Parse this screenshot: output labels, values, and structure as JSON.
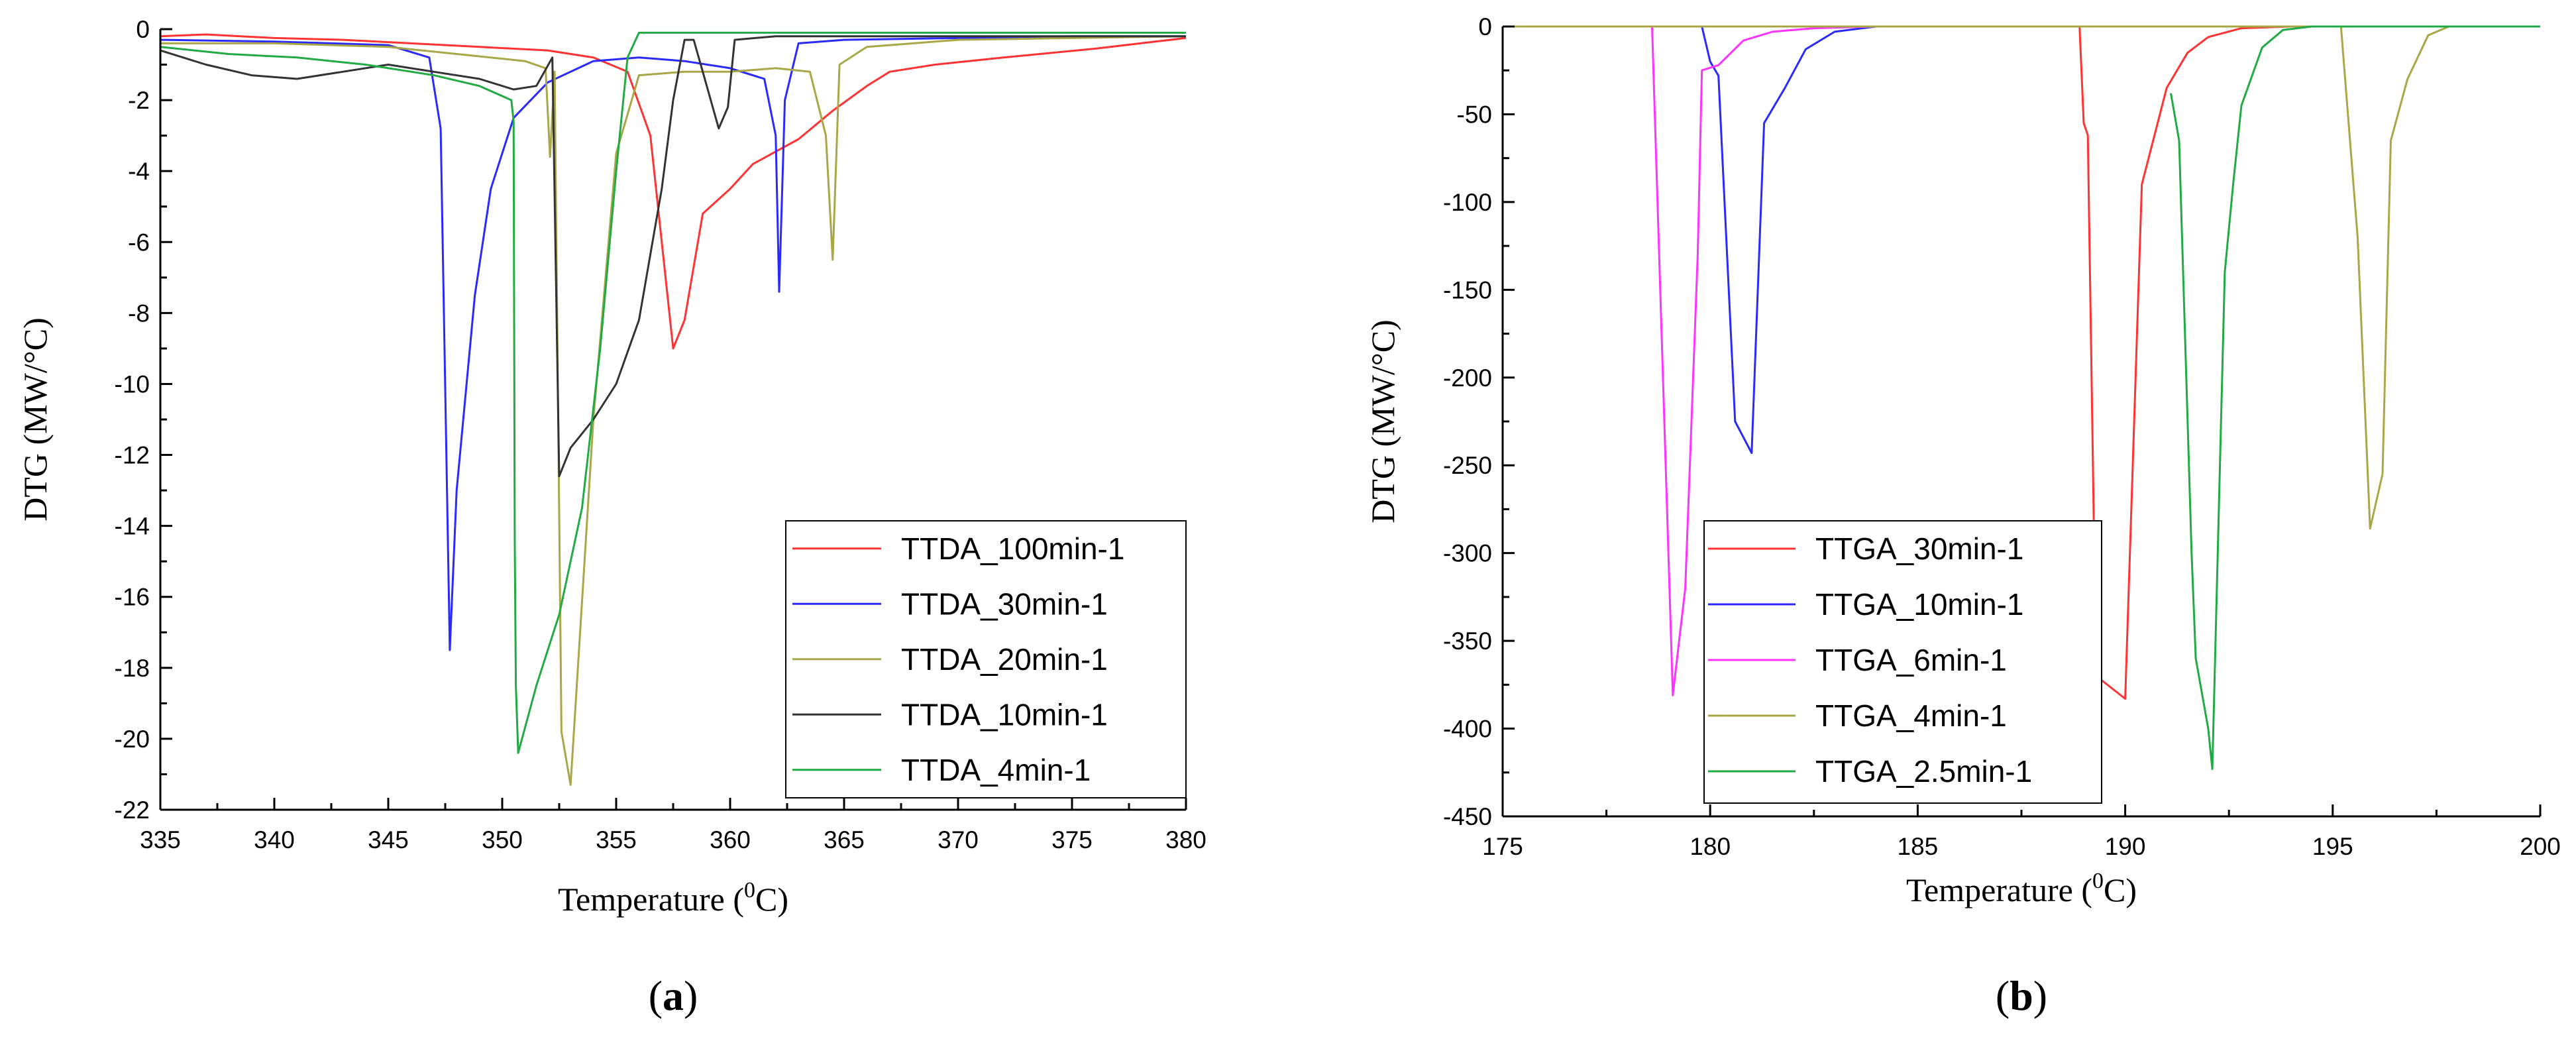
{
  "chart_data": [
    {
      "type": "line",
      "panel_label": "a",
      "title": "",
      "xlabel": "Temperature",
      "xlabel_sup": "0",
      "xlabel_unit": "C",
      "ylabel": "DTG (MW/°C)",
      "xlim": [
        335,
        380
      ],
      "ylim": [
        -22,
        0
      ],
      "xticks": [
        335,
        340,
        345,
        350,
        355,
        360,
        365,
        370,
        375,
        380
      ],
      "yticks": [
        0,
        -2,
        -4,
        -6,
        -8,
        -10,
        -12,
        -14,
        -16,
        -18,
        -20,
        -22
      ],
      "legend_position": "bottom-right",
      "series": [
        {
          "name": "TTDA_100min-1",
          "color": "#ff3333",
          "points": [
            [
              335,
              -0.2
            ],
            [
              337,
              -0.15
            ],
            [
              340,
              -0.25
            ],
            [
              343,
              -0.3
            ],
            [
              346,
              -0.4
            ],
            [
              349,
              -0.5
            ],
            [
              352,
              -0.6
            ],
            [
              354,
              -0.8
            ],
            [
              355.5,
              -1.2
            ],
            [
              356.5,
              -3
            ],
            [
              357.5,
              -9.0
            ],
            [
              358,
              -8.2
            ],
            [
              358.8,
              -5.2
            ],
            [
              360,
              -4.5
            ],
            [
              361,
              -3.8
            ],
            [
              363,
              -3.1
            ],
            [
              364.5,
              -2.3
            ],
            [
              366,
              -1.6
            ],
            [
              367,
              -1.2
            ],
            [
              369,
              -1.0
            ],
            [
              372,
              -0.8
            ],
            [
              376,
              -0.55
            ],
            [
              378,
              -0.4
            ],
            [
              380,
              -0.25
            ]
          ]
        },
        {
          "name": "TTDA_30min-1",
          "color": "#2a2aff",
          "points": [
            [
              335,
              -0.3
            ],
            [
              340,
              -0.35
            ],
            [
              345,
              -0.45
            ],
            [
              346.8,
              -0.8
            ],
            [
              347.3,
              -2.8
            ],
            [
              347.7,
              -17.5
            ],
            [
              348,
              -13
            ],
            [
              348.8,
              -7.5
            ],
            [
              349.5,
              -4.5
            ],
            [
              350.5,
              -2.5
            ],
            [
              352,
              -1.5
            ],
            [
              354,
              -0.9
            ],
            [
              356,
              -0.8
            ],
            [
              358,
              -0.9
            ],
            [
              360,
              -1.1
            ],
            [
              361.5,
              -1.4
            ],
            [
              362,
              -3
            ],
            [
              362.15,
              -7.4
            ],
            [
              362.4,
              -2
            ],
            [
              363,
              -0.4
            ],
            [
              365,
              -0.3
            ],
            [
              370,
              -0.25
            ],
            [
              375,
              -0.2
            ],
            [
              380,
              -0.2
            ]
          ]
        },
        {
          "name": "TTDA_20min-1",
          "color": "#a8a848",
          "points": [
            [
              335,
              -0.4
            ],
            [
              340,
              -0.4
            ],
            [
              345,
              -0.5
            ],
            [
              348,
              -0.7
            ],
            [
              351,
              -0.9
            ],
            [
              351.9,
              -1.1
            ],
            [
              352.1,
              -3.6
            ],
            [
              352.3,
              -1.2
            ],
            [
              352.6,
              -19.8
            ],
            [
              353,
              -21.3
            ],
            [
              354,
              -11
            ],
            [
              355,
              -3.5
            ],
            [
              356,
              -1.3
            ],
            [
              358,
              -1.2
            ],
            [
              360,
              -1.2
            ],
            [
              362,
              -1.1
            ],
            [
              363.5,
              -1.2
            ],
            [
              364.2,
              -3
            ],
            [
              364.5,
              -6.5
            ],
            [
              364.8,
              -1.0
            ],
            [
              366,
              -0.5
            ],
            [
              370,
              -0.3
            ],
            [
              375,
              -0.25
            ],
            [
              380,
              -0.2
            ]
          ]
        },
        {
          "name": "TTDA_10min-1",
          "color": "#333333",
          "points": [
            [
              335,
              -0.6
            ],
            [
              337,
              -1.0
            ],
            [
              339,
              -1.3
            ],
            [
              341,
              -1.4
            ],
            [
              343,
              -1.2
            ],
            [
              345,
              -1.0
            ],
            [
              347,
              -1.2
            ],
            [
              349,
              -1.4
            ],
            [
              350.5,
              -1.7
            ],
            [
              351.5,
              -1.6
            ],
            [
              352.2,
              -0.8
            ],
            [
              352.5,
              -12.6
            ],
            [
              353,
              -11.8
            ],
            [
              354,
              -11
            ],
            [
              355,
              -10
            ],
            [
              356,
              -8.2
            ],
            [
              357,
              -4.5
            ],
            [
              357.5,
              -2.0
            ],
            [
              358,
              -0.3
            ],
            [
              358.4,
              -0.3
            ],
            [
              358.8,
              -1.2
            ],
            [
              359.5,
              -2.8
            ],
            [
              359.9,
              -2.2
            ],
            [
              360.2,
              -0.3
            ],
            [
              362,
              -0.2
            ],
            [
              365,
              -0.2
            ],
            [
              370,
              -0.2
            ],
            [
              380,
              -0.2
            ]
          ]
        },
        {
          "name": "TTDA_4min-1",
          "color": "#22aa44",
          "points": [
            [
              335,
              -0.5
            ],
            [
              338,
              -0.7
            ],
            [
              341,
              -0.8
            ],
            [
              344,
              -1.0
            ],
            [
              347,
              -1.3
            ],
            [
              349,
              -1.6
            ],
            [
              350.4,
              -2.0
            ],
            [
              350.5,
              -2.6
            ],
            [
              350.55,
              -14.3
            ],
            [
              350.6,
              -18.5
            ],
            [
              350.7,
              -20.4
            ],
            [
              351.5,
              -18.5
            ],
            [
              352.5,
              -16.5
            ],
            [
              353.5,
              -13.5
            ],
            [
              354.3,
              -9
            ],
            [
              355,
              -4
            ],
            [
              355.5,
              -0.8
            ],
            [
              356,
              -0.1
            ],
            [
              360,
              -0.1
            ],
            [
              365,
              -0.1
            ],
            [
              370,
              -0.1
            ],
            [
              380,
              -0.1
            ]
          ]
        }
      ]
    },
    {
      "type": "line",
      "panel_label": "b",
      "title": "",
      "xlabel": "Temperature",
      "xlabel_sup": "0",
      "xlabel_unit": "C",
      "ylabel": "DTG (MW/°C)",
      "xlim": [
        175,
        200
      ],
      "ylim": [
        -450,
        0
      ],
      "xticks": [
        175,
        180,
        185,
        190,
        195,
        200
      ],
      "yticks": [
        0,
        -50,
        -100,
        -150,
        -200,
        -250,
        -300,
        -350,
        -400,
        -450
      ],
      "legend_position": "bottom-left",
      "series": [
        {
          "name": "TTGA_30min-1",
          "color": "#ff3333",
          "points": [
            [
              175,
              0
            ],
            [
              188.9,
              0
            ],
            [
              189,
              -55
            ],
            [
              189.1,
              -62
            ],
            [
              189.3,
              -370
            ],
            [
              190,
              -383
            ],
            [
              190.4,
              -90
            ],
            [
              191,
              -35
            ],
            [
              191.5,
              -15
            ],
            [
              192,
              -6
            ],
            [
              192.8,
              -1
            ],
            [
              194,
              0
            ],
            [
              200,
              0
            ]
          ]
        },
        {
          "name": "TTGA_10min-1",
          "color": "#2a2aff",
          "points": [
            [
              175,
              0
            ],
            [
              179.8,
              0
            ],
            [
              180,
              -20
            ],
            [
              180.2,
              -28
            ],
            [
              180.6,
              -225
            ],
            [
              181,
              -243
            ],
            [
              181.3,
              -55
            ],
            [
              181.8,
              -35
            ],
            [
              182.3,
              -13
            ],
            [
              183,
              -3
            ],
            [
              184,
              0
            ],
            [
              200,
              0
            ]
          ]
        },
        {
          "name": "TTGA_6min-1",
          "color": "#ff33ff",
          "points": [
            [
              175,
              0
            ],
            [
              178.6,
              0
            ],
            [
              179.1,
              -381
            ],
            [
              179.4,
              -320
            ],
            [
              179.7,
              -130
            ],
            [
              179.8,
              -25
            ],
            [
              180.2,
              -22
            ],
            [
              180.8,
              -8
            ],
            [
              181.5,
              -3
            ],
            [
              182.5,
              -1
            ],
            [
              184,
              0
            ],
            [
              200,
              0
            ]
          ]
        },
        {
          "name": "TTGA_4min-1",
          "color": "#a8a848",
          "points": [
            [
              175,
              0
            ],
            [
              195.2,
              0
            ],
            [
              195.6,
              -120
            ],
            [
              195.9,
              -286
            ],
            [
              196.2,
              -255
            ],
            [
              196.4,
              -65
            ],
            [
              196.8,
              -30
            ],
            [
              197.3,
              -5
            ],
            [
              197.8,
              0
            ],
            [
              200,
              0
            ]
          ]
        },
        {
          "name": "TTGA_2.5min-1",
          "color": "#22aa44",
          "points": [
            [
              191.1,
              -38
            ],
            [
              191.3,
              -65
            ],
            [
              191.6,
              -300
            ],
            [
              191.7,
              -360
            ],
            [
              192,
              -400
            ],
            [
              192.1,
              -423
            ],
            [
              192.4,
              -140
            ],
            [
              192.6,
              -90
            ],
            [
              192.8,
              -45
            ],
            [
              193.3,
              -12
            ],
            [
              193.8,
              -2
            ],
            [
              194.5,
              0
            ],
            [
              200,
              0
            ]
          ]
        }
      ]
    }
  ]
}
